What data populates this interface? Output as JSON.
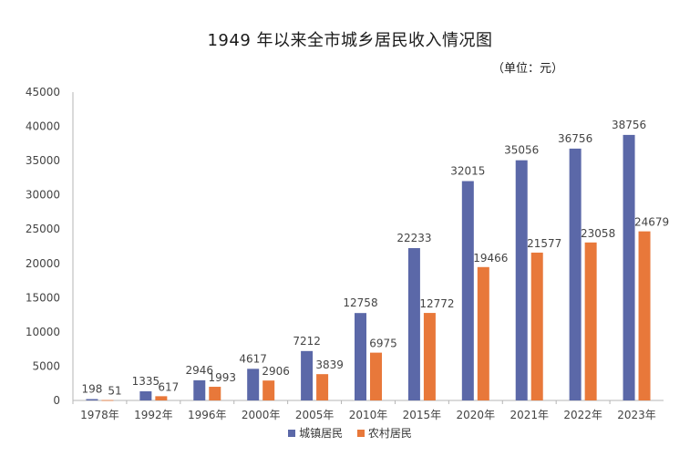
{
  "chart_data": {
    "type": "bar",
    "title": "1949 年以来全市城乡居民收入情况图",
    "subtitle": "（单位：元）",
    "categories": [
      "1978年",
      "1992年",
      "1996年",
      "2000年",
      "2005年",
      "2010年",
      "2015年",
      "2020年",
      "2021年",
      "2022年",
      "2023年"
    ],
    "series": [
      {
        "name": "城镇居民",
        "color": "#5b68a8",
        "values": [
          198,
          1335,
          2946,
          4617,
          7212,
          12758,
          22233,
          32015,
          35056,
          36756,
          38756
        ]
      },
      {
        "name": "农村居民",
        "color": "#e8783a",
        "values": [
          51,
          617,
          1993,
          2906,
          3839,
          6975,
          12772,
          19466,
          21577,
          23058,
          24679
        ]
      }
    ],
    "y_ticks": [
      0,
      5000,
      10000,
      15000,
      20000,
      25000,
      30000,
      35000,
      40000,
      45000
    ],
    "ylim": [
      0,
      45000
    ],
    "xlabel": "",
    "ylabel": "",
    "grid": false,
    "legend_position": "bottom"
  }
}
